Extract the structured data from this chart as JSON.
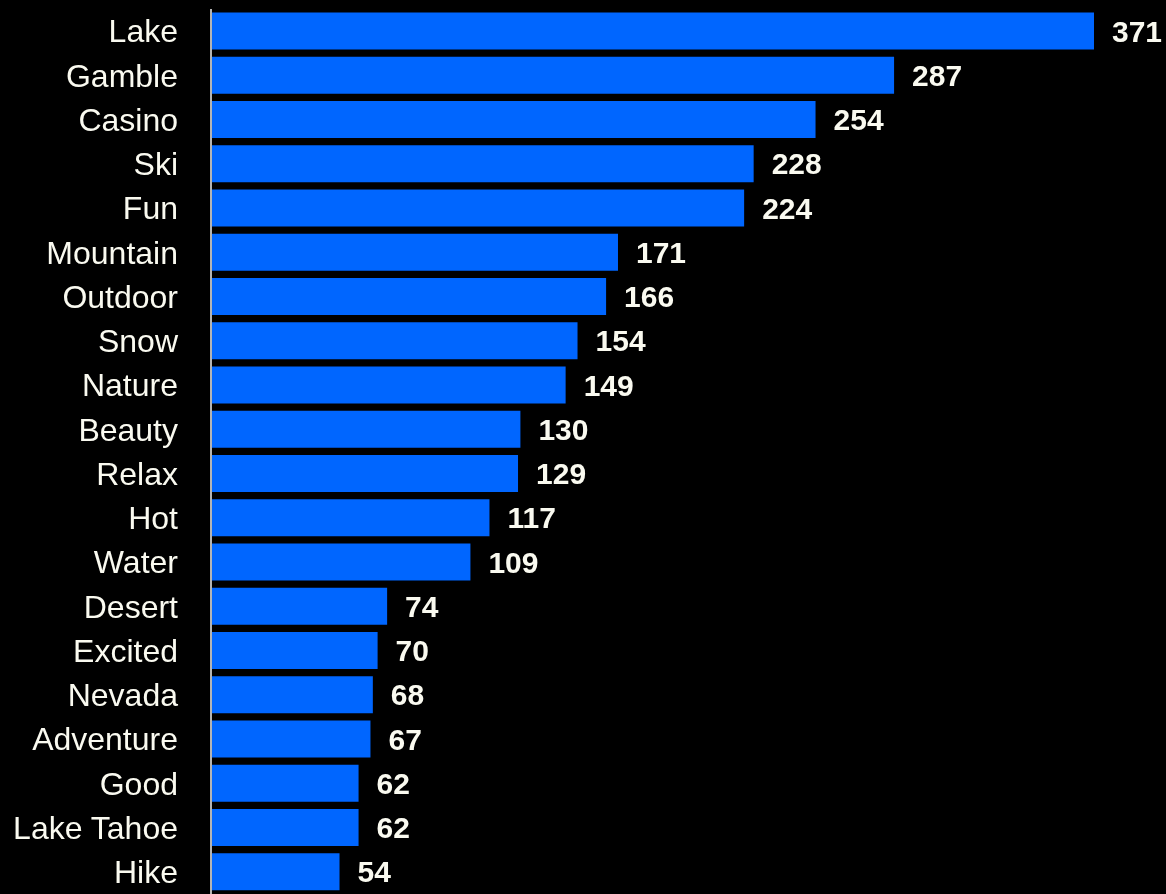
{
  "chart_data": {
    "type": "bar",
    "orientation": "horizontal",
    "color": "#0066ff",
    "data_labels": true,
    "categories": [
      "Lake",
      "Gamble",
      "Casino",
      "Ski",
      "Fun",
      "Mountain",
      "Outdoor",
      "Snow",
      "Nature",
      "Beauty",
      "Relax",
      "Hot",
      "Water",
      "Desert",
      "Excited",
      "Nevada",
      "Adventure",
      "Good",
      "Lake Tahoe",
      "Hike"
    ],
    "values": [
      371,
      287,
      254,
      228,
      224,
      171,
      166,
      154,
      149,
      130,
      129,
      117,
      109,
      74,
      70,
      68,
      67,
      62,
      62,
      54
    ]
  }
}
